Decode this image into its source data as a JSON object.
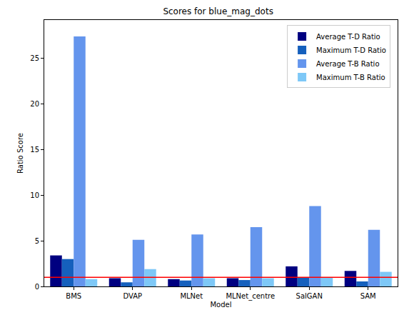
{
  "chart_data": {
    "type": "bar",
    "title": "Scores for blue_mag_dots",
    "x_label": "Model",
    "y_label": "Ratio Score",
    "categories": [
      "BMS",
      "DVAP",
      "MLNet",
      "MLNet_centre",
      "SalGAN",
      "SAM"
    ],
    "series": [
      {
        "name": "Average T-D Ratio",
        "color": "#000080",
        "values": [
          3.4,
          0.9,
          0.8,
          0.9,
          2.2,
          1.7
        ]
      },
      {
        "name": "Maximum T-D Ratio",
        "color": "#1560bd",
        "values": [
          3.0,
          0.45,
          0.65,
          0.7,
          1.0,
          0.55
        ]
      },
      {
        "name": "Average T-B Ratio",
        "color": "#6495ed",
        "values": [
          27.4,
          5.1,
          5.7,
          6.5,
          8.8,
          6.2
        ]
      },
      {
        "name": "Maximum T-B Ratio",
        "color": "#7ec8f7",
        "values": [
          0.8,
          1.9,
          0.9,
          0.9,
          1.0,
          1.6
        ]
      }
    ],
    "ylim": [
      0,
      29.2
    ],
    "yticks": [
      0,
      5,
      10,
      15,
      20,
      25
    ],
    "grid": false,
    "legend": "upper right",
    "reference_line": {
      "value": 1,
      "color": "#ff0000"
    }
  }
}
